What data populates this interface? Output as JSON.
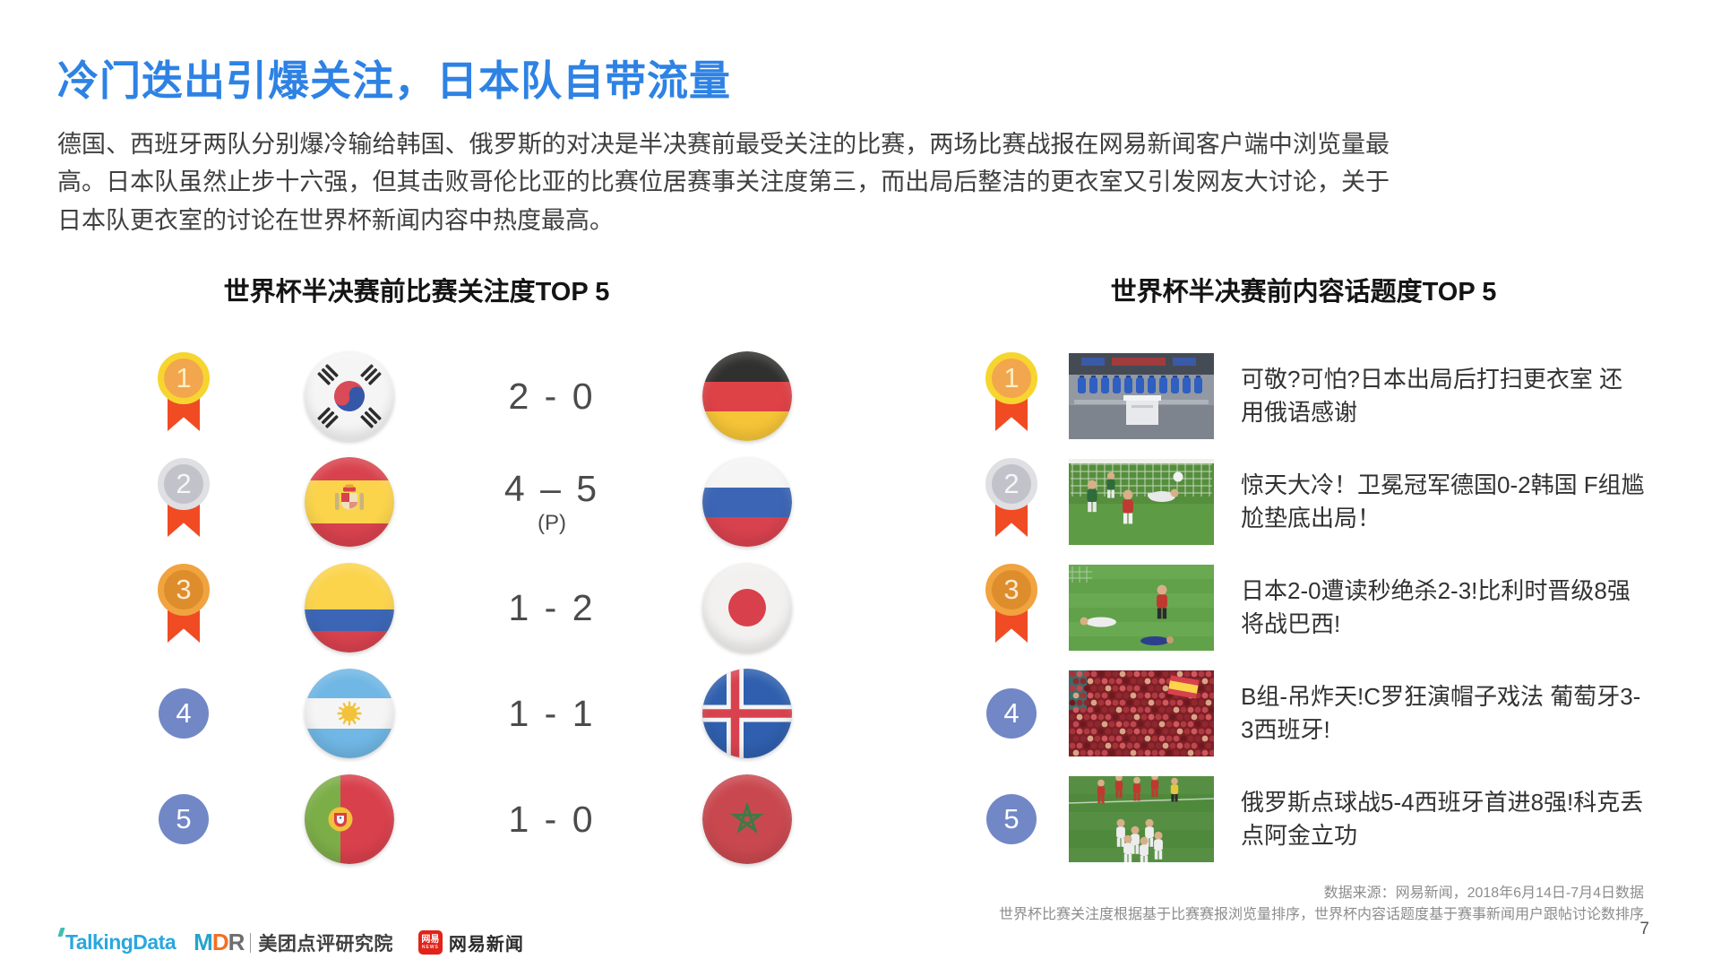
{
  "slide": {
    "title": "冷门迭出引爆关注，日本队自带流量",
    "paragraph": "德国、西班牙两队分别爆冷输给韩国、俄罗斯的对决是半决赛前最受关注的比赛，两场比赛战报在网易新闻客户端中浏览量最高。日本队虽然止步十六强，但其击败哥伦比亚的比赛位居赛事关注度第三，而出局后整洁的更衣室又引发网友大讨论，关于日本队更衣室的讨论在世界杯新闻内容中热度最高。",
    "page_number": "7"
  },
  "left_panel": {
    "title": "世界杯半决赛前比赛关注度TOP 5",
    "rows": [
      {
        "rank": "1",
        "medal": "gold",
        "team_a": "south-korea",
        "score": "2 - 0",
        "score_note": "",
        "team_b": "germany"
      },
      {
        "rank": "2",
        "medal": "silver",
        "team_a": "spain",
        "score": "4 – 5",
        "score_note": "(P)",
        "team_b": "russia"
      },
      {
        "rank": "3",
        "medal": "bronze",
        "team_a": "colombia",
        "score": "1 - 2",
        "score_note": "",
        "team_b": "japan"
      },
      {
        "rank": "4",
        "medal": "none",
        "team_a": "argentina",
        "score": "1 - 1",
        "score_note": "",
        "team_b": "iceland"
      },
      {
        "rank": "5",
        "medal": "none",
        "team_a": "portugal",
        "score": "1 - 0",
        "score_note": "",
        "team_b": "morocco"
      }
    ]
  },
  "right_panel": {
    "title": "世界杯半决赛前内容话题度TOP 5",
    "items": [
      {
        "rank": "1",
        "medal": "gold",
        "thumbnail": "japan-locker-room",
        "headline": "可敬?可怕?日本出局后打扫更衣室 还用俄语感谢"
      },
      {
        "rank": "2",
        "medal": "silver",
        "thumbnail": "germany-korea-goal",
        "headline": "惊天大冷！卫冕冠军德国0-2韩国 F组尴尬垫底出局！"
      },
      {
        "rank": "3",
        "medal": "bronze",
        "thumbnail": "japan-belgium-match",
        "headline": "日本2-0遭读秒绝杀2-3!比利时晋级8强将战巴西!"
      },
      {
        "rank": "4",
        "medal": "none",
        "thumbnail": "portugal-spain-fans",
        "headline": "B组-吊炸天!C罗狂演帽子戏法 葡萄牙3-3西班牙!"
      },
      {
        "rank": "5",
        "medal": "none",
        "thumbnail": "russia-spain-celebration",
        "headline": "俄罗斯点球战5-4西班牙首进8强!科克丢点阿金立功"
      }
    ]
  },
  "footer": {
    "source_line1": "数据来源：网易新闻，2018年6月14日-7月4日数据",
    "source_line2": "世界杯比赛关注度根据基于比赛赛报浏览量排序，世界杯内容话题度基于赛事新闻用户跟帖讨论数排序",
    "logos": {
      "talkingdata": "TalkingData",
      "mdr_m": "M",
      "mdr_d": "D",
      "mdr_r": "R",
      "meituan_label": "美团点评研究院",
      "netease_icon_text": "网易",
      "netease_icon_sub": "NEWS",
      "netease_label": "网易新闻"
    }
  },
  "colors": {
    "title_blue": "#2E82E4",
    "medal_gold_ring": "#F6D52F",
    "medal_gold_fill": "#F2A64E",
    "medal_silver_ring": "#DFDFE4",
    "medal_silver_fill": "#C2C2CA",
    "medal_bronze_ring": "#F0A33F",
    "medal_bronze_fill": "#DE8D2C",
    "ribbon_red": "#F04B23",
    "rank_badge_blue": "#7287C6"
  }
}
